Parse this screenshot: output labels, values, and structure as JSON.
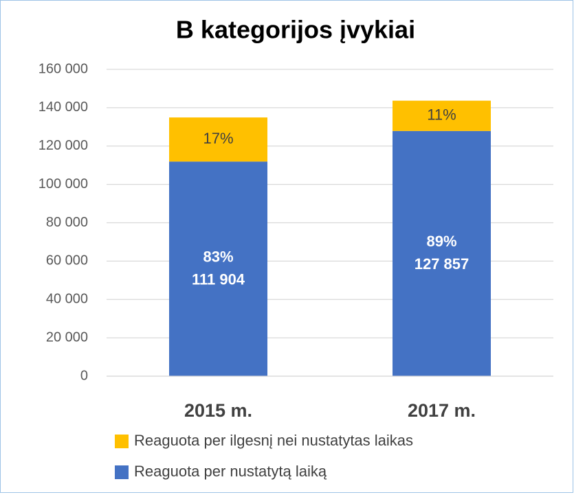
{
  "chart_data": {
    "type": "stacked_bar",
    "title": "B kategorijos įvykiai",
    "categories": [
      "2015 m.",
      "2017 m."
    ],
    "series": [
      {
        "name": "Reaguota per nustatytą laiką",
        "color": "#4472c4",
        "values": [
          111904,
          127857
        ],
        "value_labels": [
          "111 904",
          "127 857"
        ],
        "share_labels": [
          "83%",
          "89%"
        ]
      },
      {
        "name": "Reaguota per ilgesnį nei nustatytas laikas",
        "color": "#ffc000",
        "values": [
          23000,
          15800
        ],
        "share_labels": [
          "17%",
          "11%"
        ]
      }
    ],
    "ylim": [
      0,
      160000
    ],
    "yticks": [
      0,
      {
        "value": 20000,
        "label": "20 000"
      },
      {
        "value": 40000,
        "label": "40 000"
      },
      {
        "value": 60000,
        "label": "60 000"
      },
      {
        "value": 80000,
        "label": "80 000"
      },
      {
        "value": 100000,
        "label": "100 000"
      },
      {
        "value": 120000,
        "label": "120 000"
      },
      {
        "value": 140000,
        "label": "140 000"
      },
      {
        "value": 160000,
        "label": "160 000"
      }
    ],
    "grid": true,
    "legend": "bottom"
  }
}
